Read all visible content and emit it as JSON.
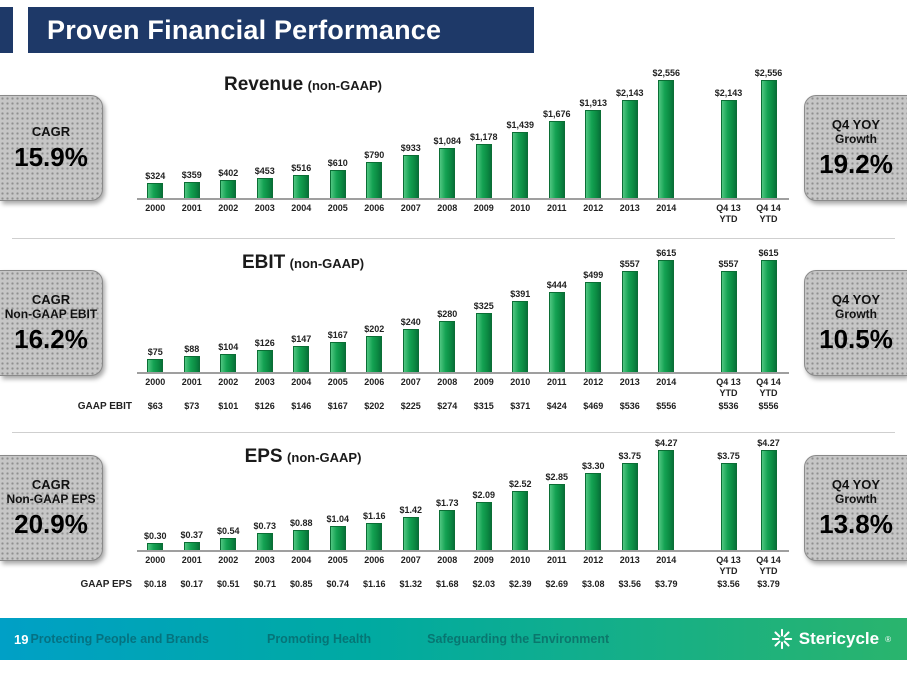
{
  "title": "Proven Financial Performance",
  "page_number": "19",
  "footer": {
    "items": [
      "Protecting People and Brands",
      "Promoting Health",
      "Safeguarding the Environment"
    ],
    "brand": "Stericycle",
    "brand_mark": "®"
  },
  "colors": {
    "header_bg": "#1e3968",
    "bar_green": "#0f9447",
    "panel_gray": "#c6c6c6",
    "footer_teal": "#00a0c6",
    "footer_green": "#2ab46d"
  },
  "chart_data": [
    {
      "type": "bar",
      "title": "Revenue",
      "subtitle": "(non-GAAP)",
      "categories": [
        "2000",
        "2001",
        "2002",
        "2003",
        "2004",
        "2005",
        "2006",
        "2007",
        "2008",
        "2009",
        "2010",
        "2011",
        "2012",
        "2013",
        "2014",
        "Q4 13\nYTD",
        "Q4 14\nYTD"
      ],
      "values": [
        324,
        359,
        402,
        453,
        516,
        610,
        790,
        933,
        1084,
        1178,
        1439,
        1676,
        1913,
        2143,
        2556,
        2143,
        2556
      ],
      "labels": [
        "$324",
        "$359",
        "$402",
        "$453",
        "$516",
        "$610",
        "$790",
        "$933",
        "$1,084",
        "$1,178",
        "$1,439",
        "$1,676",
        "$1,913",
        "$2,143",
        "$2,556",
        "$2,143",
        "$2,556"
      ],
      "ylim": [
        0,
        2700
      ],
      "left_panel": {
        "line1": "CAGR",
        "line2": "",
        "value": "15.9%"
      },
      "right_panel": {
        "line1": "Q4 YOY",
        "line2": "Growth",
        "value": "19.2%"
      }
    },
    {
      "type": "bar",
      "title": "EBIT",
      "subtitle": "(non-GAAP)",
      "categories": [
        "2000",
        "2001",
        "2002",
        "2003",
        "2004",
        "2005",
        "2006",
        "2007",
        "2008",
        "2009",
        "2010",
        "2011",
        "2012",
        "2013",
        "2014",
        "Q4 13\nYTD",
        "Q4 14\nYTD"
      ],
      "values": [
        75,
        88,
        104,
        126,
        147,
        167,
        202,
        240,
        280,
        325,
        391,
        444,
        499,
        557,
        615,
        557,
        615
      ],
      "labels": [
        "$75",
        "$88",
        "$104",
        "$126",
        "$147",
        "$167",
        "$202",
        "$240",
        "$280",
        "$325",
        "$391",
        "$444",
        "$499",
        "$557",
        "$615",
        "$557",
        "$615"
      ],
      "ylim": [
        0,
        650
      ],
      "gaap_row": {
        "label": "GAAP EBIT",
        "values": [
          "$63",
          "$73",
          "$101",
          "$126",
          "$146",
          "$167",
          "$202",
          "$225",
          "$274",
          "$315",
          "$371",
          "$424",
          "$469",
          "$536",
          "$556",
          "$536",
          "$556"
        ]
      },
      "left_panel": {
        "line1": "CAGR",
        "line2": "Non-GAAP EBIT",
        "value": "16.2%"
      },
      "right_panel": {
        "line1": "Q4 YOY",
        "line2": "Growth",
        "value": "10.5%"
      }
    },
    {
      "type": "bar",
      "title": "EPS",
      "subtitle": "(non-GAAP)",
      "categories": [
        "2000",
        "2001",
        "2002",
        "2003",
        "2004",
        "2005",
        "2006",
        "2007",
        "2008",
        "2009",
        "2010",
        "2011",
        "2012",
        "2013",
        "2014",
        "Q4 13\nYTD",
        "Q4 14\nYTD"
      ],
      "values": [
        0.3,
        0.37,
        0.54,
        0.73,
        0.88,
        1.04,
        1.16,
        1.42,
        1.73,
        2.09,
        2.52,
        2.85,
        3.3,
        3.75,
        4.27,
        3.75,
        4.27
      ],
      "labels": [
        "$0.30",
        "$0.37",
        "$0.54",
        "$0.73",
        "$0.88",
        "$1.04",
        "$1.16",
        "$1.42",
        "$1.73",
        "$2.09",
        "$2.52",
        "$2.85",
        "$3.30",
        "$3.75",
        "$4.27",
        "$3.75",
        "$4.27"
      ],
      "ylim": [
        0,
        4.5
      ],
      "gaap_row": {
        "label": "GAAP EPS",
        "values": [
          "$0.18",
          "$0.17",
          "$0.51",
          "$0.71",
          "$0.85",
          "$0.74",
          "$1.16",
          "$1.32",
          "$1.68",
          "$2.03",
          "$2.39",
          "$2.69",
          "$3.08",
          "$3.56",
          "$3.79",
          "$3.56",
          "$3.79"
        ]
      },
      "left_panel": {
        "line1": "CAGR",
        "line2": "Non-GAAP EPS",
        "value": "20.9%"
      },
      "right_panel": {
        "line1": "Q4 YOY",
        "line2": "Growth",
        "value": "13.8%"
      }
    }
  ]
}
